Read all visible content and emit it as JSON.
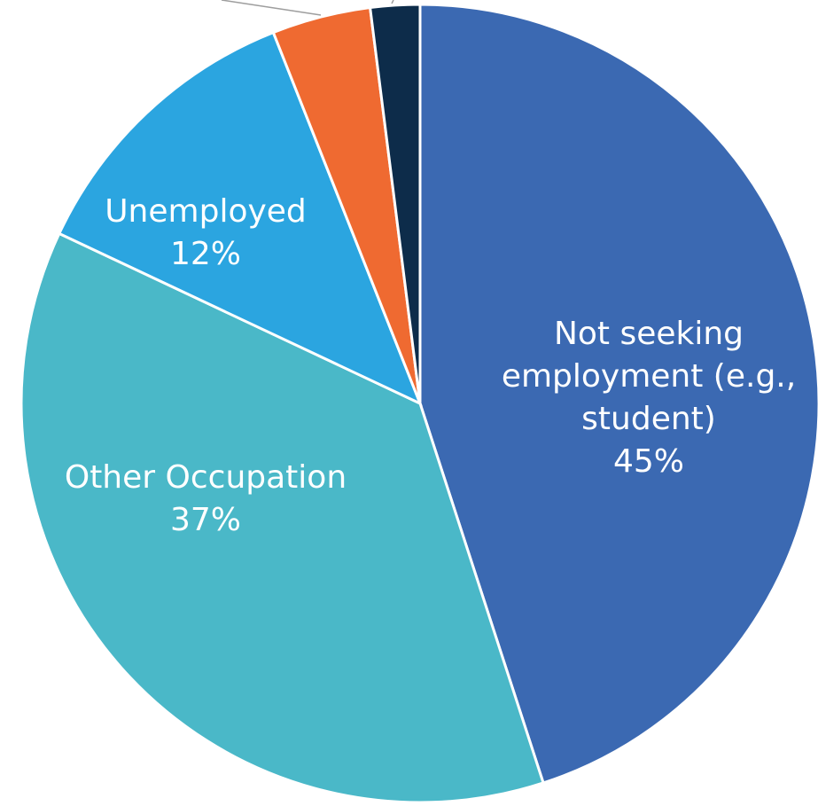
{
  "chart_data": {
    "type": "pie",
    "title": "",
    "slices": [
      {
        "label": [
          "Not seeking",
          "employment (e.g.,",
          "student)"
        ],
        "value_label": "45%",
        "value": 45,
        "color": "#3B69B2"
      },
      {
        "label": [
          "Other Occupation"
        ],
        "value_label": "37%",
        "value": 37,
        "color": "#4AB8C8"
      },
      {
        "label": [
          "Unemployed"
        ],
        "value_label": "12%",
        "value": 12,
        "color": "#2BA5E0"
      },
      {
        "label": [],
        "value_label": "",
        "value": 4,
        "color": "#EF6A31"
      },
      {
        "label": [],
        "value_label": "",
        "value": 2,
        "color": "#0D2C4A"
      }
    ],
    "legend": "none"
  }
}
